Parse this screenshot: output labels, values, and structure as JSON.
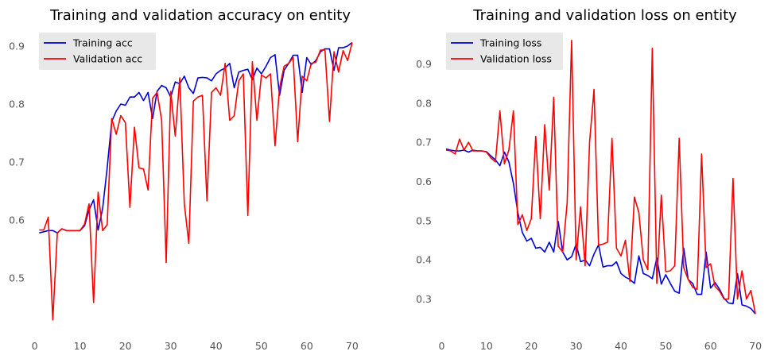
{
  "chart_data": [
    {
      "type": "line",
      "title": "Training and validation accuracy on entity",
      "xlabel": "",
      "ylabel": "",
      "xlim": [
        -1.5,
        73
      ],
      "ylim": [
        0.41,
        0.93
      ],
      "xticks": [
        0,
        10,
        20,
        30,
        40,
        50,
        60,
        70
      ],
      "yticks": [
        0.5,
        0.6,
        0.7,
        0.8,
        0.9
      ],
      "ytick_labels": [
        "0.5",
        "0.6",
        "0.7",
        "0.8",
        "0.9"
      ],
      "grid": false,
      "legend": "upper-left",
      "x": [
        1,
        2,
        3,
        4,
        5,
        6,
        7,
        8,
        9,
        10,
        11,
        12,
        13,
        14,
        15,
        16,
        17,
        18,
        19,
        20,
        21,
        22,
        23,
        24,
        25,
        26,
        27,
        28,
        29,
        30,
        31,
        32,
        33,
        34,
        35,
        36,
        37,
        38,
        39,
        40,
        41,
        42,
        43,
        44,
        45,
        46,
        47,
        48,
        49,
        50,
        51,
        52,
        53,
        54,
        55,
        56,
        57,
        58,
        59,
        60,
        61,
        62,
        63,
        64,
        65,
        66,
        67,
        68,
        69,
        70
      ],
      "series": [
        {
          "name": "Training acc",
          "color": "#0000dd",
          "values": [
            0.578,
            0.58,
            0.582,
            0.582,
            0.578,
            0.585,
            0.582,
            0.582,
            0.582,
            0.582,
            0.59,
            0.618,
            0.635,
            0.583,
            0.62,
            0.69,
            0.77,
            0.788,
            0.8,
            0.798,
            0.812,
            0.812,
            0.82,
            0.806,
            0.82,
            0.775,
            0.822,
            0.832,
            0.828,
            0.812,
            0.838,
            0.835,
            0.848,
            0.828,
            0.818,
            0.845,
            0.846,
            0.845,
            0.84,
            0.852,
            0.858,
            0.862,
            0.87,
            0.828,
            0.855,
            0.858,
            0.86,
            0.842,
            0.862,
            0.852,
            0.865,
            0.88,
            0.885,
            0.815,
            0.858,
            0.87,
            0.884,
            0.884,
            0.82,
            0.88,
            0.868,
            0.875,
            0.89,
            0.895,
            0.895,
            0.858,
            0.897,
            0.897,
            0.9,
            0.906
          ]
        },
        {
          "name": "Validation acc",
          "color": "#ff0000",
          "values": [
            0.583,
            0.583,
            0.605,
            0.428,
            0.578,
            0.585,
            0.582,
            0.582,
            0.582,
            0.582,
            0.593,
            0.628,
            0.458,
            0.648,
            0.582,
            0.592,
            0.775,
            0.748,
            0.78,
            0.768,
            0.622,
            0.76,
            0.69,
            0.688,
            0.652,
            0.81,
            0.82,
            0.772,
            0.527,
            0.822,
            0.745,
            0.845,
            0.628,
            0.56,
            0.805,
            0.812,
            0.815,
            0.633,
            0.82,
            0.828,
            0.815,
            0.87,
            0.772,
            0.78,
            0.84,
            0.852,
            0.608,
            0.873,
            0.772,
            0.85,
            0.845,
            0.852,
            0.728,
            0.828,
            0.865,
            0.87,
            0.88,
            0.735,
            0.848,
            0.84,
            0.87,
            0.872,
            0.893,
            0.893,
            0.77,
            0.89,
            0.855,
            0.892,
            0.875,
            0.906
          ]
        }
      ]
    },
    {
      "type": "line",
      "title": "Training and validation loss on entity",
      "xlabel": "",
      "ylabel": "",
      "xlim": [
        -1.5,
        73
      ],
      "ylim": [
        0.22,
        0.99
      ],
      "xticks": [
        0,
        10,
        20,
        30,
        40,
        50,
        60,
        70
      ],
      "yticks": [
        0.3,
        0.4,
        0.5,
        0.6,
        0.7,
        0.8,
        0.9
      ],
      "ytick_labels": [
        "0.3",
        "0.4",
        "0.5",
        "0.6",
        "0.7",
        "0.8",
        "0.9"
      ],
      "grid": false,
      "legend": "upper-left",
      "x": [
        1,
        2,
        3,
        4,
        5,
        6,
        7,
        8,
        9,
        10,
        11,
        12,
        13,
        14,
        15,
        16,
        17,
        18,
        19,
        20,
        21,
        22,
        23,
        24,
        25,
        26,
        27,
        28,
        29,
        30,
        31,
        32,
        33,
        34,
        35,
        36,
        37,
        38,
        39,
        40,
        41,
        42,
        43,
        44,
        45,
        46,
        47,
        48,
        49,
        50,
        51,
        52,
        53,
        54,
        55,
        56,
        57,
        58,
        59,
        60,
        61,
        62,
        63,
        64,
        65,
        66,
        67,
        68,
        69,
        70
      ],
      "series": [
        {
          "name": "Training loss",
          "color": "#0000dd",
          "values": [
            0.683,
            0.68,
            0.678,
            0.678,
            0.68,
            0.675,
            0.68,
            0.678,
            0.678,
            0.676,
            0.665,
            0.655,
            0.64,
            0.675,
            0.65,
            0.595,
            0.52,
            0.47,
            0.448,
            0.455,
            0.43,
            0.432,
            0.42,
            0.445,
            0.42,
            0.498,
            0.42,
            0.4,
            0.408,
            0.44,
            0.395,
            0.4,
            0.385,
            0.415,
            0.438,
            0.382,
            0.385,
            0.385,
            0.395,
            0.365,
            0.356,
            0.35,
            0.34,
            0.41,
            0.365,
            0.36,
            0.352,
            0.405,
            0.338,
            0.362,
            0.34,
            0.32,
            0.315,
            0.43,
            0.35,
            0.34,
            0.312,
            0.312,
            0.42,
            0.328,
            0.342,
            0.325,
            0.302,
            0.29,
            0.288,
            0.365,
            0.285,
            0.282,
            0.276,
            0.262
          ]
        },
        {
          "name": "Validation loss",
          "color": "#ff0000",
          "values": [
            0.68,
            0.678,
            0.67,
            0.708,
            0.68,
            0.7,
            0.678,
            0.678,
            0.678,
            0.675,
            0.66,
            0.65,
            0.78,
            0.645,
            0.68,
            0.78,
            0.49,
            0.515,
            0.475,
            0.505,
            0.715,
            0.505,
            0.745,
            0.578,
            0.815,
            0.435,
            0.42,
            0.545,
            0.96,
            0.4,
            0.535,
            0.385,
            0.7,
            0.835,
            0.438,
            0.44,
            0.445,
            0.71,
            0.43,
            0.41,
            0.45,
            0.345,
            0.56,
            0.52,
            0.4,
            0.375,
            0.94,
            0.34,
            0.565,
            0.37,
            0.372,
            0.385,
            0.71,
            0.38,
            0.35,
            0.33,
            0.325,
            0.67,
            0.38,
            0.39,
            0.332,
            0.32,
            0.3,
            0.3,
            0.608,
            0.3,
            0.372,
            0.3,
            0.322,
            0.262
          ]
        }
      ]
    }
  ]
}
